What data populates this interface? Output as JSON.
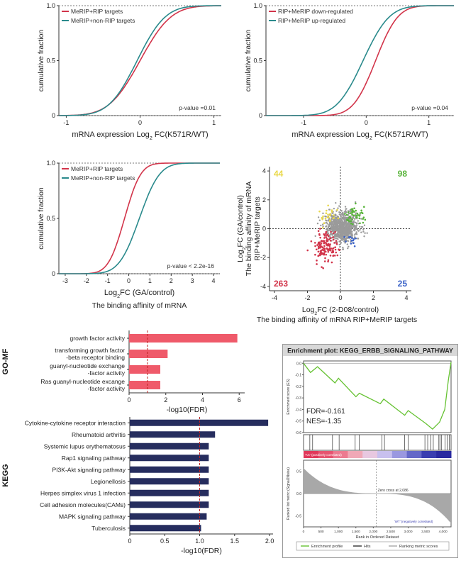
{
  "colors": {
    "red": "#d2344a",
    "teal": "#2a8a8c",
    "bar_red": "#ef5a6a",
    "bar_navy": "#262d5e",
    "yellow": "#e9d84a",
    "green": "#58b43a",
    "blue": "#3a62c8",
    "gray": "#9a9a9a",
    "gsea_line": "#66c233"
  },
  "chart_data": [
    {
      "id": "cdf1",
      "type": "line",
      "ylabel": "cumulative fraction",
      "xlabel_main": "mRNA expression Log",
      "xlabel_sub": "2",
      "xlabel_tail": " FC(K571R/WT)",
      "xlim": [
        -1.1,
        1.1
      ],
      "ylim": [
        0,
        1
      ],
      "xticks": [
        "-1",
        "0",
        "1"
      ],
      "yticks": [
        "0",
        "0.5",
        "1.0"
      ],
      "annotation": "p-value =0.01",
      "grid": false,
      "legend_position": "top-left",
      "series": [
        {
          "name": "MeRIP+RIP targets",
          "color_key": "red",
          "mu": 0.0,
          "sigma": 0.33
        },
        {
          "name": "MeRIP+non-RIP targets",
          "color_key": "teal",
          "mu": -0.04,
          "sigma": 0.3
        }
      ]
    },
    {
      "id": "cdf2",
      "type": "line",
      "ylabel": "cumulative fraction",
      "xlabel_main": "mRNA expression Log",
      "xlabel_sub": "2",
      "xlabel_tail": " FC(K571R/WT)",
      "xlim": [
        -1.6,
        1.4
      ],
      "ylim": [
        0,
        1
      ],
      "xticks": [
        "-1",
        "0",
        "1"
      ],
      "yticks": [
        "0",
        "0.5",
        "1.0"
      ],
      "annotation": "p-value =0.04",
      "grid": false,
      "legend_position": "top-left",
      "series": [
        {
          "name": "RIP+MeRIP down-regulated",
          "color_key": "red",
          "mu": 0.15,
          "sigma": 0.28
        },
        {
          "name": "RIP+MeRIP up-regulated",
          "color_key": "teal",
          "mu": -0.05,
          "sigma": 0.33
        }
      ]
    },
    {
      "id": "cdf3",
      "type": "line",
      "ylabel": "cumulative fraction",
      "xlabel_main": "Log",
      "xlabel_sub": "2",
      "xlabel_tail": "FC  (GA/control)",
      "caption": "The binding affinity of mRNA",
      "xlim": [
        -3.3,
        4.3
      ],
      "ylim": [
        0,
        1
      ],
      "xticks": [
        "-3",
        "-2",
        "-1",
        "0",
        "1",
        "2",
        "3",
        "4"
      ],
      "yticks": [
        "0",
        "0.5",
        "1.0"
      ],
      "annotation": "p-value < 2.2e-16",
      "grid": false,
      "legend_position": "top-left",
      "series": [
        {
          "name": "MeRIP+RIP targets",
          "color_key": "red",
          "mu": -0.2,
          "sigma": 0.6
        },
        {
          "name": "MeRIP+non-RIP targets",
          "color_key": "teal",
          "mu": 0.5,
          "sigma": 0.75
        }
      ]
    },
    {
      "id": "scatter",
      "type": "scatter",
      "ylabel_line1": "Log",
      "ylabel_sub": "2",
      "ylabel_line1_tail": "FC (GA/control)",
      "ylabel_line2": "The binding affinity of mRNA",
      "ylabel_line3": "RIP+MeRIP targets",
      "xlabel_main": "Log",
      "xlabel_sub": "2",
      "xlabel_tail": "FC (2-D08/control)",
      "caption": "The binding affinity of mRNA RIP+MeRIP targets",
      "xlim": [
        -4.3,
        4.3
      ],
      "ylim": [
        -4.3,
        4.3
      ],
      "xticks": [
        "-4",
        "-2",
        "0",
        "2",
        "4"
      ],
      "yticks": [
        "4",
        "2",
        "0",
        "-2",
        "-4"
      ],
      "quadrant_counts": [
        {
          "label": "44",
          "quadrant": "top-left",
          "color_key": "yellow"
        },
        {
          "label": "98",
          "quadrant": "top-right",
          "color_key": "green"
        },
        {
          "label": "263",
          "quadrant": "bottom-left",
          "color_key": "red"
        },
        {
          "label": "25",
          "quadrant": "bottom-right",
          "color_key": "blue"
        }
      ]
    },
    {
      "id": "gomf",
      "type": "bar",
      "orientation": "horizontal",
      "group_label": "GO-MF",
      "categories": [
        "growth factor activity",
        "transforming growth factor\n-beta receptor binding",
        "guanyl-nucleotide exchange\n-factor activity",
        "Ras guanyl-nucleotide excange\n-factor activity"
      ],
      "values": [
        5.9,
        2.1,
        1.7,
        1.7
      ],
      "xlabel": "-log10(FDR)",
      "xlim": [
        0,
        6.3
      ],
      "xticks": [
        "0",
        "2",
        "4",
        "6"
      ],
      "xtick_values": [
        0,
        2,
        4,
        6
      ],
      "reference_line": 1.0
    },
    {
      "id": "kegg",
      "type": "bar",
      "orientation": "horizontal",
      "group_label": "KEGG",
      "categories": [
        "Cytokine-cytokine receptor interaction",
        "Rheumatoid arthritis",
        "Systemic lupus erythematosus",
        "Rap1 signaling pathway",
        "PI3K-Akt signaling pathway",
        "Legionellosis",
        "Herpes simplex virus 1 infection",
        "Cell adhesion molecules(CAMs)",
        "MAPK signaling pathway",
        "Tuberculosis"
      ],
      "values": [
        1.98,
        1.22,
        1.13,
        1.13,
        1.13,
        1.13,
        1.13,
        1.13,
        1.1,
        1.02
      ],
      "xlabel": "-log10(FDR)",
      "xlim": [
        0,
        2.05
      ],
      "xticks": [
        "0",
        "0.5",
        "1.0",
        "1.5",
        "2.0"
      ],
      "xtick_values": [
        0,
        0.5,
        1.0,
        1.5,
        2.0
      ],
      "reference_line": 1.0
    },
    {
      "id": "gsea",
      "type": "line",
      "title": "Enrichment plot: KEGG_ERBB_SIGNALING_PATHWAY",
      "ylabel_top": "Enrichment score (ES)",
      "ylabel_bottom": "Ranked list metric (Signal2Noise)",
      "xlabel": "Rank in Ordered Dataset",
      "fdr": "FDR=-0.161",
      "nes": "NES=-1.35",
      "pos_label": "'AX' (positively correlated)",
      "neg_label": "'WT' (negatively correlated)",
      "zero_label": "Zero cross at 2,086",
      "es_yticks": [
        "0.0",
        "-0.1",
        "-0.2",
        "-0.3",
        "-0.4",
        "-0.5",
        "-0.6"
      ],
      "rank_xticks": [
        "0",
        "500",
        "1,000",
        "1,500",
        "2,000",
        "2,500",
        "3,000",
        "3,500",
        "4,000"
      ],
      "rank_yticks": [
        "0.5",
        "0.0",
        "-0.5"
      ],
      "legend": [
        "Enrichment profile",
        "Hits",
        "Ranking metric scores"
      ],
      "es_curve": [
        [
          0,
          0.0
        ],
        [
          200,
          -0.08
        ],
        [
          400,
          -0.03
        ],
        [
          900,
          -0.17
        ],
        [
          1000,
          -0.13
        ],
        [
          1500,
          -0.29
        ],
        [
          1600,
          -0.26
        ],
        [
          2200,
          -0.35
        ],
        [
          2300,
          -0.31
        ],
        [
          2900,
          -0.45
        ],
        [
          3000,
          -0.41
        ],
        [
          3500,
          -0.52
        ],
        [
          3700,
          -0.57
        ],
        [
          3900,
          -0.51
        ],
        [
          4050,
          -0.4
        ],
        [
          4150,
          -0.15
        ],
        [
          4230,
          0.01
        ]
      ]
    }
  ]
}
